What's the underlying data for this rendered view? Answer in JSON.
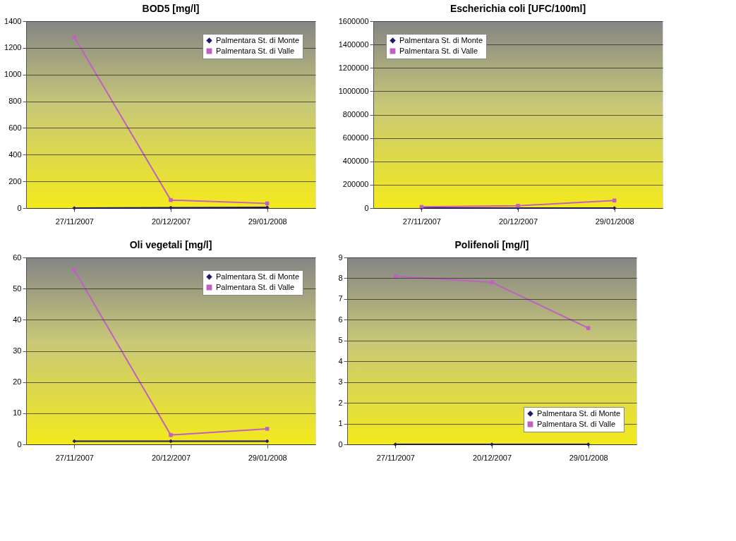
{
  "chart_data": [
    {
      "type": "line",
      "title": "BOD5  [mg/l]",
      "categories": [
        "27/11/2007",
        "20/12/2007",
        "29/01/2008"
      ],
      "ylim": [
        0,
        1400
      ],
      "yticks": [
        0,
        200,
        400,
        600,
        800,
        1000,
        1200,
        1400
      ],
      "grid": "y",
      "legend": "top right",
      "series": [
        {
          "name": "Palmentara St. di Monte",
          "color": "#1f1a6e",
          "marker": "diamond",
          "values": [
            0,
            3,
            5
          ]
        },
        {
          "name": "Palmentara St. di Valle",
          "color": "#c060c0",
          "marker": "square",
          "values": [
            1280,
            60,
            35
          ]
        }
      ]
    },
    {
      "type": "line",
      "title": "Escherichia coli [UFC/100ml]",
      "categories": [
        "27/11/2007",
        "20/12/2007",
        "29/01/2008"
      ],
      "ylim": [
        0,
        1600000
      ],
      "yticks": [
        0,
        200000,
        400000,
        600000,
        800000,
        1000000,
        1200000,
        1400000,
        1600000
      ],
      "grid": "y",
      "legend": "top left",
      "series": [
        {
          "name": "Palmentara St. di Monte",
          "color": "#1f1a6e",
          "marker": "diamond",
          "values": [
            0,
            0,
            0
          ]
        },
        {
          "name": "Palmentara St. di Valle",
          "color": "#c060c0",
          "marker": "square",
          "values": [
            10000,
            20000,
            65000
          ]
        }
      ]
    },
    {
      "type": "line",
      "title": "Oli vegetali [mg/l]",
      "categories": [
        "27/11/2007",
        "20/12/2007",
        "29/01/2008"
      ],
      "ylim": [
        0,
        60
      ],
      "yticks": [
        0,
        10,
        20,
        30,
        40,
        50,
        60
      ],
      "grid": "y",
      "legend": "top right",
      "series": [
        {
          "name": "Palmentara St. di Monte",
          "color": "#1f1a6e",
          "marker": "diamond",
          "values": [
            1,
            1,
            1
          ]
        },
        {
          "name": "Palmentara St. di Valle",
          "color": "#c060c0",
          "marker": "square",
          "values": [
            56,
            3,
            5
          ]
        }
      ]
    },
    {
      "type": "line",
      "title": "Polifenoli [mg/l]",
      "categories": [
        "27/11/2007",
        "20/12/2007",
        "29/01/2008"
      ],
      "ylim": [
        0,
        9
      ],
      "yticks": [
        0,
        1,
        2,
        3,
        4,
        5,
        6,
        7,
        8,
        9
      ],
      "grid": "y",
      "legend": "bottom right",
      "series": [
        {
          "name": "Palmentara St. di Monte",
          "color": "#1f1a6e",
          "marker": "diamond",
          "values": [
            0,
            0,
            0
          ]
        },
        {
          "name": "Palmentara St. di Valle",
          "color": "#c060c0",
          "marker": "square",
          "values": [
            8.1,
            7.8,
            5.6
          ]
        }
      ]
    }
  ]
}
